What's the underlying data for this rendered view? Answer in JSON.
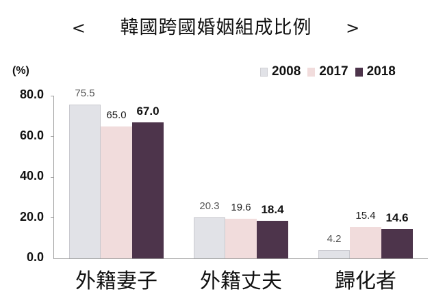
{
  "header": {
    "prev": "<",
    "title": "韓國跨國婚姻組成比例",
    "next": ">"
  },
  "chart_data": {
    "type": "bar",
    "title": "韓國跨國婚姻組成比例",
    "ylabel": "(%)",
    "xlabel": "",
    "ylim": [
      0,
      80
    ],
    "yticks": [
      "0.0",
      "20.0",
      "40.0",
      "60.0",
      "80.0"
    ],
    "categories": [
      "外籍妻子",
      "外籍丈夫",
      "歸化者"
    ],
    "series": [
      {
        "name": "2008",
        "color": "#e1e2e7",
        "values": [
          75.5,
          20.3,
          4.2
        ],
        "labels": [
          "75.5",
          "20.3",
          "4.2"
        ]
      },
      {
        "name": "2017",
        "color": "#f1dcdc",
        "values": [
          65.0,
          19.6,
          15.4
        ],
        "labels": [
          "65.0",
          "19.6",
          "15.4"
        ]
      },
      {
        "name": "2018",
        "color": "#4d344b",
        "values": [
          67.0,
          18.4,
          14.6
        ],
        "labels": [
          "67.0",
          "18.4",
          "14.6"
        ]
      }
    ],
    "legend_position": "top-right",
    "grid": false
  }
}
